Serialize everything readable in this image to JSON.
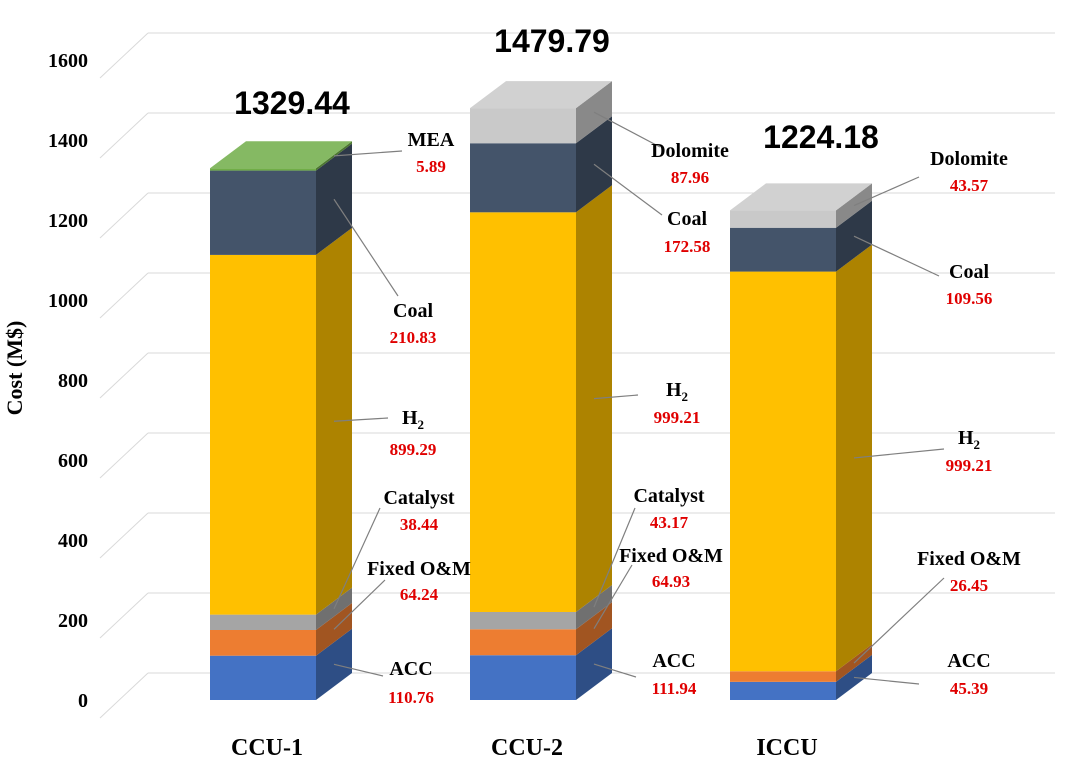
{
  "chart_data": {
    "type": "bar",
    "stacked": true,
    "three_d": true,
    "ylabel": "Cost (M$)",
    "ylim": [
      0,
      1600
    ],
    "yticks": [
      0,
      200,
      400,
      600,
      800,
      1000,
      1200,
      1400,
      1600
    ],
    "categories": [
      "CCU-1",
      "CCU-2",
      "ICCU"
    ],
    "totals": [
      "1329.44",
      "1479.79",
      "1224.18"
    ],
    "series": [
      {
        "name": "ACC",
        "color": "#4472C4",
        "values": [
          110.76,
          111.94,
          45.39
        ]
      },
      {
        "name": "Fixed O&M",
        "color": "#ED7D31",
        "values": [
          64.24,
          64.93,
          26.45
        ]
      },
      {
        "name": "Catalyst",
        "color": "#A5A5A5",
        "values": [
          38.44,
          43.17,
          0
        ]
      },
      {
        "name": "H2",
        "color": "#FFC000",
        "values": [
          899.29,
          999.21,
          999.21
        ]
      },
      {
        "name": "Coal",
        "color": "#44546A",
        "values": [
          210.83,
          172.58,
          109.56
        ]
      },
      {
        "name": "Dolomite",
        "color": "#C9C9C9",
        "values": [
          0,
          87.96,
          43.57
        ]
      },
      {
        "name": "MEA",
        "color": "#70AD47",
        "values": [
          5.89,
          0,
          0
        ]
      }
    ],
    "annotations": [
      {
        "bar": 0,
        "series": "MEA",
        "label": "MEA",
        "value": "5.89"
      },
      {
        "bar": 0,
        "series": "Coal",
        "label": "Coal",
        "value": "210.83"
      },
      {
        "bar": 0,
        "series": "H2",
        "label": "H",
        "sub": "2",
        "value": "899.29"
      },
      {
        "bar": 0,
        "series": "Catalyst",
        "label": "Catalyst",
        "value": "38.44"
      },
      {
        "bar": 0,
        "series": "Fixed O&M",
        "label": "Fixed O&M",
        "value": "64.24"
      },
      {
        "bar": 0,
        "series": "ACC",
        "label": "ACC",
        "value": "110.76"
      },
      {
        "bar": 1,
        "series": "Dolomite",
        "label": "Dolomite",
        "value": "87.96"
      },
      {
        "bar": 1,
        "series": "Coal",
        "label": "Coal",
        "value": "172.58"
      },
      {
        "bar": 1,
        "series": "H2",
        "label": "H",
        "sub": "2",
        "value": "999.21"
      },
      {
        "bar": 1,
        "series": "Catalyst",
        "label": "Catalyst",
        "value": "43.17"
      },
      {
        "bar": 1,
        "series": "Fixed O&M",
        "label": "Fixed O&M",
        "value": "64.93"
      },
      {
        "bar": 1,
        "series": "ACC",
        "label": "ACC",
        "value": "111.94"
      },
      {
        "bar": 2,
        "series": "Dolomite",
        "label": "Dolomite",
        "value": "43.57"
      },
      {
        "bar": 2,
        "series": "Coal",
        "label": "Coal",
        "value": "109.56"
      },
      {
        "bar": 2,
        "series": "H2",
        "label": "H",
        "sub": "2",
        "value": "999.21"
      },
      {
        "bar": 2,
        "series": "Fixed O&M",
        "label": "Fixed O&M",
        "value": "26.45"
      },
      {
        "bar": 2,
        "series": "ACC",
        "label": "ACC",
        "value": "45.39"
      }
    ]
  }
}
